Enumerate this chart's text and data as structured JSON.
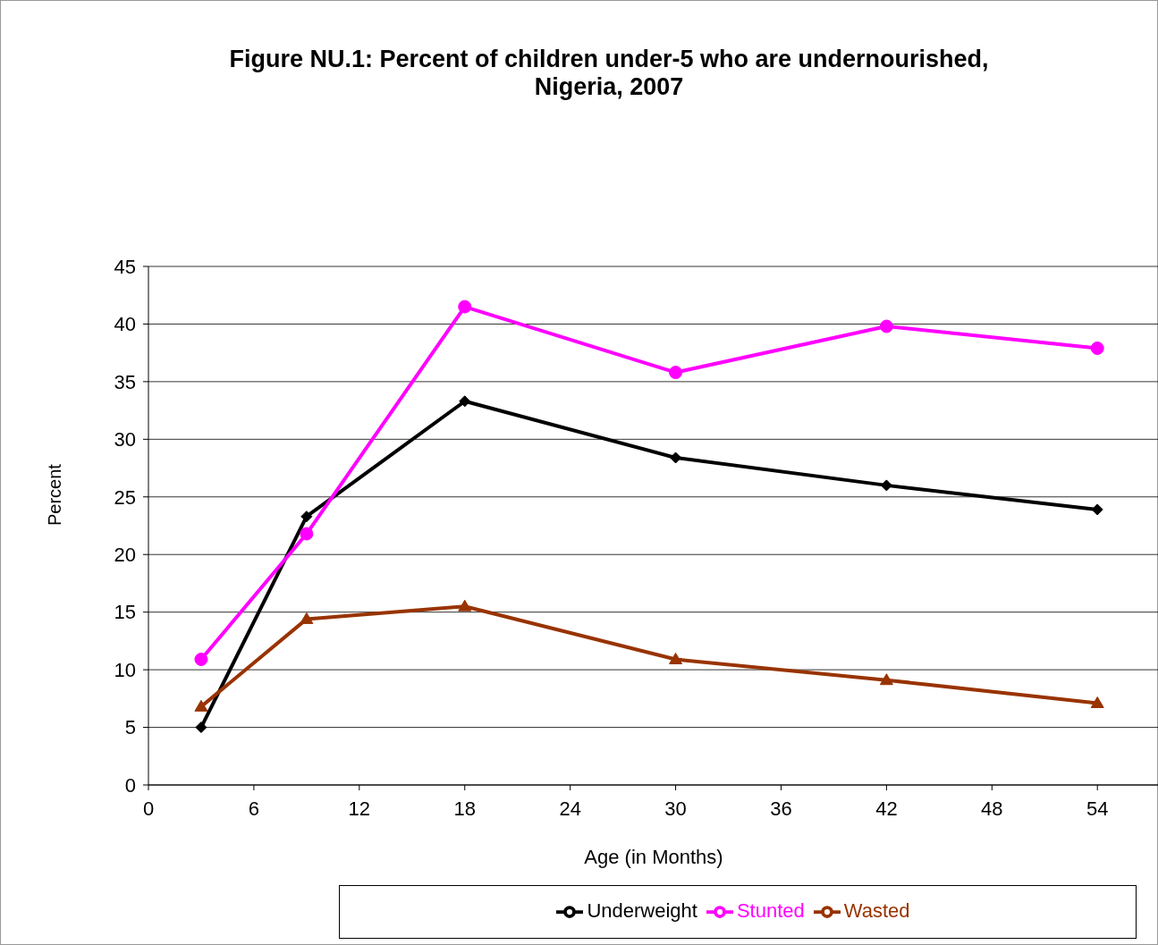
{
  "chart_data": {
    "type": "line",
    "title": "Figure NU.1: Percent of children under-5 who are undernourished, Nigeria, 2007",
    "xlabel": "Age (in Months)",
    "ylabel": "Percent",
    "x": [
      3,
      9,
      18,
      30,
      42,
      54
    ],
    "series": [
      {
        "name": "Underweight",
        "color": "#000000",
        "marker": "diamond",
        "values": [
          5.0,
          23.3,
          33.3,
          28.4,
          26.0,
          23.9
        ]
      },
      {
        "name": "Stunted",
        "color": "#ff00ff",
        "marker": "circle",
        "values": [
          10.9,
          21.8,
          41.5,
          35.8,
          39.8,
          37.9
        ]
      },
      {
        "name": "Wasted",
        "color": "#993300",
        "marker": "triangle",
        "values": [
          6.8,
          14.4,
          15.5,
          10.9,
          9.1,
          7.1
        ]
      }
    ],
    "xlim": [
      0,
      57.5
    ],
    "xticks": [
      0,
      6,
      12,
      18,
      24,
      30,
      36,
      42,
      48,
      54
    ],
    "ylim": [
      0,
      45
    ],
    "yticks": [
      0,
      5,
      10,
      15,
      20,
      25,
      30,
      35,
      40,
      45
    ],
    "grid": "y",
    "legend": "bottom",
    "line_style": "solid"
  }
}
